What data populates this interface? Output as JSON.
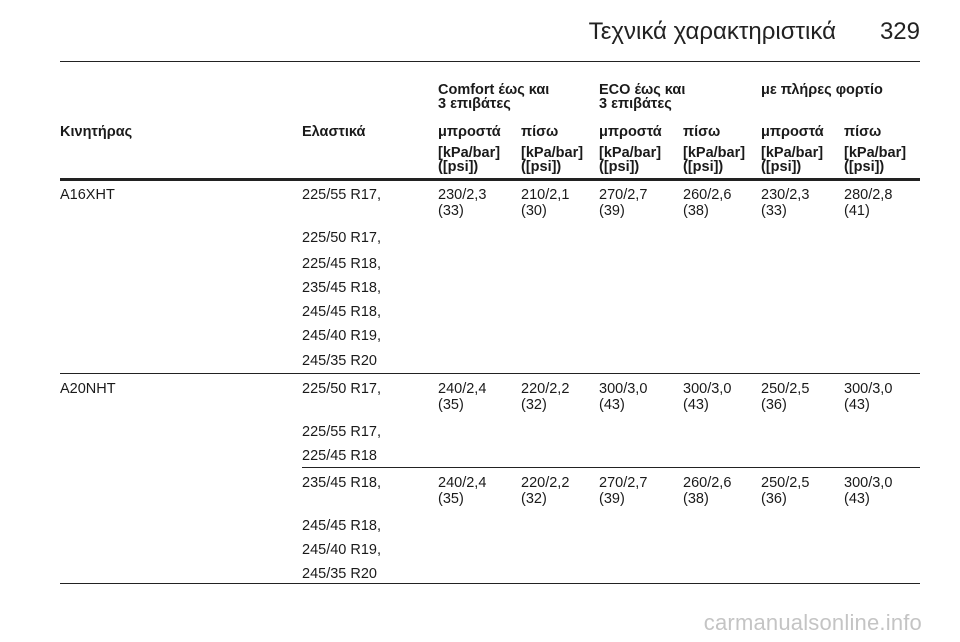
{
  "header": {
    "title": "Τεχνικά χαρακτηριστικά",
    "page_number": "329"
  },
  "table": {
    "groups": [
      {
        "line1": "Comfort έως και",
        "line2": "3 επιβάτες"
      },
      {
        "line1": "ECO έως και",
        "line2": "3 επιβάτες"
      },
      {
        "line1": "με πλήρες φορτίο",
        "line2": ""
      }
    ],
    "columns": {
      "engine": "Κινητήρας",
      "tyres": "Ελαστικά",
      "front": "μπροστά",
      "rear": "πίσω"
    },
    "unit_line1": "[kPa/bar]",
    "unit_line2": "([psi])",
    "rows": [
      {
        "engine": "A16XHT",
        "tyres": [
          "225/55 R17,",
          "225/50 R17,",
          "225/45 R18,",
          "235/45 R18,",
          "245/45 R18,",
          "245/40 R19,",
          "245/35 R20"
        ],
        "values": [
          [
            "230/2,3",
            "(33)"
          ],
          [
            "210/2,1",
            "(30)"
          ],
          [
            "270/2,7",
            "(39)"
          ],
          [
            "260/2,6",
            "(38)"
          ],
          [
            "230/2,3",
            "(33)"
          ],
          [
            "280/2,8",
            "(41)"
          ]
        ]
      },
      {
        "engine": "A20NHT",
        "tyres": [
          "225/50 R17,",
          "225/55 R17,",
          "225/45 R18"
        ],
        "values": [
          [
            "240/2,4",
            "(35)"
          ],
          [
            "220/2,2",
            "(32)"
          ],
          [
            "300/3,0",
            "(43)"
          ],
          [
            "300/3,0",
            "(43)"
          ],
          [
            "250/2,5",
            "(36)"
          ],
          [
            "300/3,0",
            "(43)"
          ]
        ]
      },
      {
        "engine": "",
        "tyres": [
          "235/45 R18,",
          "245/45 R18,",
          "245/40 R19,",
          "245/35 R20"
        ],
        "values": [
          [
            "240/2,4",
            "(35)"
          ],
          [
            "220/2,2",
            "(32)"
          ],
          [
            "270/2,7",
            "(39)"
          ],
          [
            "260/2,6",
            "(38)"
          ],
          [
            "250/2,5",
            "(36)"
          ],
          [
            "300/3,0",
            "(43)"
          ]
        ]
      }
    ]
  },
  "watermark": "carmanualsonline.info"
}
